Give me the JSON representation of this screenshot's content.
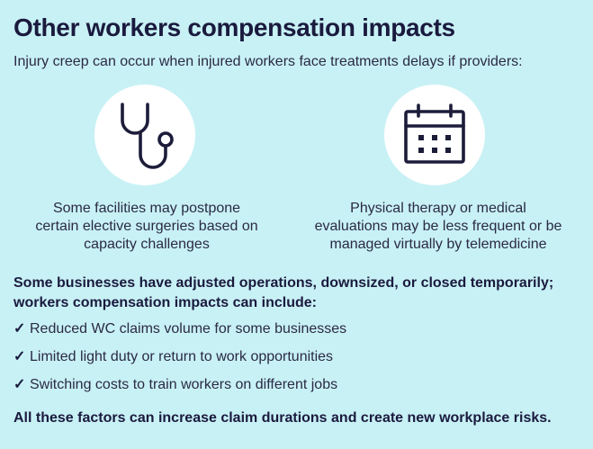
{
  "title": "Other workers compensation impacts",
  "subtitle": "Injury creep can occur when injured workers face treatments delays if providers:",
  "impacts": [
    {
      "icon": "stethoscope-icon",
      "text_lines": [
        "Some facilities may postpone",
        "certain elective surgeries based on",
        "capacity challenges"
      ]
    },
    {
      "icon": "calendar-icon",
      "text_lines": [
        "Physical therapy or medical",
        "evaluations may be less frequent or be",
        "managed virtually by telemedicine"
      ]
    }
  ],
  "business_lead": "Some businesses have adjusted operations, downsized, or closed temporarily; workers compensation impacts can include:",
  "check_mark": "✓",
  "bullets": [
    "Reduced WC claims volume for some businesses",
    "Limited light duty or return to work opportunities",
    "Switching costs to train workers on different jobs"
  ],
  "footer": "All these factors can increase claim durations and create new workplace risks.",
  "colors": {
    "background": "#c8f1f5",
    "icon_circle": "#ffffff",
    "icon_stroke": "#1c1c3a",
    "text_dark": "#1a1a3e"
  }
}
